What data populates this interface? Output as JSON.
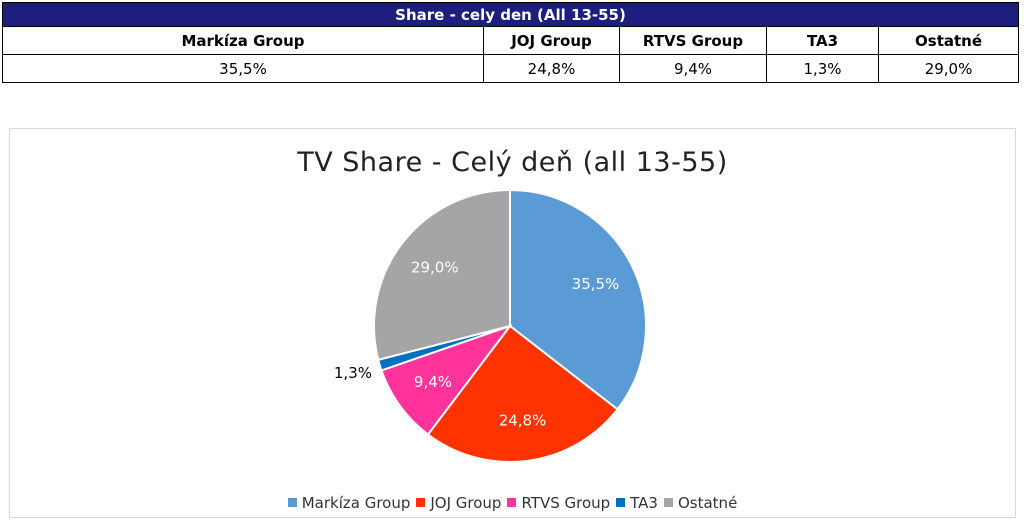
{
  "table": {
    "title": "Share - cely den (All 13-55)",
    "headers": [
      "Markíza Group",
      "JOJ Group",
      "RTVS Group",
      "TA3",
      "Ostatné"
    ],
    "values": [
      "35,5%",
      "24,8%",
      "9,4%",
      "1,3%",
      "29,0%"
    ]
  },
  "chart_data": {
    "type": "pie",
    "title": "TV Share - Celý deň (all 13-55)",
    "categories": [
      "Markíza Group",
      "JOJ Group",
      "RTVS Group",
      "TA3",
      "Ostatné"
    ],
    "values": [
      35.5,
      24.8,
      9.4,
      1.3,
      29.0
    ],
    "data_labels": [
      "35,5%",
      "24,8%",
      "9,4%",
      "1,3%",
      "29,0%"
    ],
    "colors": [
      "#5b9bd5",
      "#ff3300",
      "#ff3399",
      "#0070c0",
      "#a5a5a5"
    ],
    "legend_position": "bottom",
    "start_angle": "12 o'clock",
    "direction": "clockwise"
  }
}
